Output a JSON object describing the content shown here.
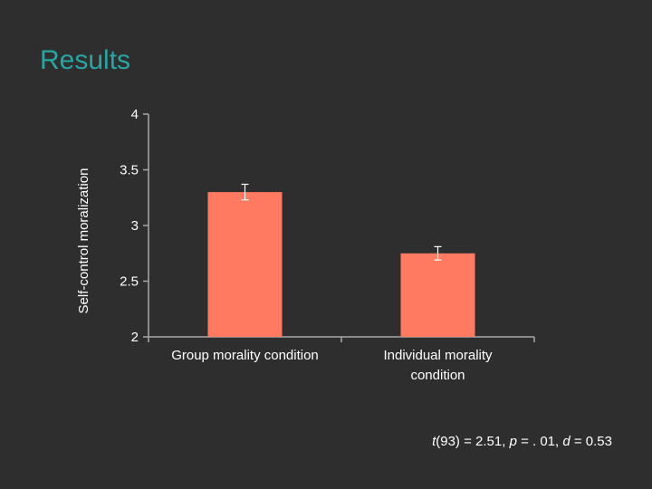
{
  "slide": {
    "title": "Results"
  },
  "colors": {
    "background": "#2e2e2e",
    "title": "#27a6a3",
    "bar": "#ff7a61",
    "axis": "#a8a8a8",
    "text": "#ffffff"
  },
  "chart_data": {
    "type": "bar",
    "title": "",
    "xlabel": "",
    "ylabel": "Self-control moralization",
    "ylim": [
      2,
      4
    ],
    "yticks": [
      "2",
      "2.5",
      "3",
      "3.5",
      "4"
    ],
    "categories": [
      [
        "Group morality condition"
      ],
      [
        "Individual morality",
        "condition"
      ]
    ],
    "values": [
      3.3,
      2.75
    ],
    "error": [
      0.07,
      0.06
    ]
  },
  "stats": {
    "t_symbol": "t",
    "t_value": "(93) = 2.51, ",
    "p_symbol": "p",
    "p_value": " = . 01, ",
    "d_symbol": "d",
    "d_value": " = 0.53"
  }
}
